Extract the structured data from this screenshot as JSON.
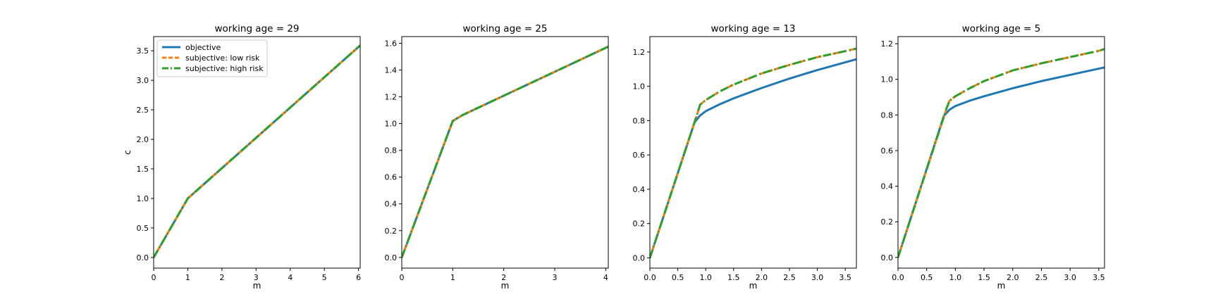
{
  "figure": {
    "background": "#ffffff",
    "series_styles": [
      {
        "color": "#1f77b4",
        "dash": "solid"
      },
      {
        "color": "#ff7f0e",
        "dash": "dashed"
      },
      {
        "color": "#2ca02c",
        "dash": "dashdot"
      }
    ]
  },
  "chart_data": [
    {
      "type": "line",
      "title": "working age = 29",
      "xlabel": "m",
      "ylabel": "c",
      "xlim": [
        0,
        6.05
      ],
      "ylim": [
        -0.18,
        3.74
      ],
      "xticks": [
        0,
        1,
        2,
        3,
        4,
        5,
        6
      ],
      "yticks": [
        0.0,
        0.5,
        1.0,
        1.5,
        2.0,
        2.5,
        3.0,
        3.5
      ],
      "ytick_labels": [
        "0.0",
        "0.5",
        "1.0",
        "1.5",
        "2.0",
        "2.5",
        "3.0",
        "3.5"
      ],
      "legend": {
        "position": "upper-left"
      },
      "series": [
        {
          "name": "objective",
          "x": [
            0,
            1.0,
            6.05
          ],
          "y": [
            0,
            1.0,
            3.59
          ]
        },
        {
          "name": "subjective: low risk",
          "x": [
            0,
            1.0,
            6.05
          ],
          "y": [
            0,
            1.0,
            3.59
          ]
        },
        {
          "name": "subjective: high risk",
          "x": [
            0,
            1.0,
            6.05
          ],
          "y": [
            0,
            1.0,
            3.59
          ]
        }
      ]
    },
    {
      "type": "line",
      "title": "working age = 25",
      "xlabel": "m",
      "ylabel": "",
      "xlim": [
        0,
        4.05
      ],
      "ylim": [
        -0.08,
        1.65
      ],
      "xticks": [
        0,
        1,
        2,
        3,
        4
      ],
      "yticks": [
        0.0,
        0.2,
        0.4,
        0.6,
        0.8,
        1.0,
        1.2,
        1.4,
        1.6
      ],
      "ytick_labels": [
        "0.0",
        "0.2",
        "0.4",
        "0.6",
        "0.8",
        "1.0",
        "1.2",
        "1.4",
        "1.6"
      ],
      "series": [
        {
          "name": "objective",
          "x": [
            0,
            1.0,
            1.2,
            4.05
          ],
          "y": [
            0,
            1.02,
            1.065,
            1.575
          ]
        },
        {
          "name": "subjective: low risk",
          "x": [
            0,
            1.0,
            1.2,
            4.05
          ],
          "y": [
            0,
            1.02,
            1.065,
            1.575
          ]
        },
        {
          "name": "subjective: high risk",
          "x": [
            0,
            1.0,
            1.2,
            4.05
          ],
          "y": [
            0,
            1.02,
            1.065,
            1.575
          ]
        }
      ]
    },
    {
      "type": "line",
      "title": "working age = 13",
      "xlabel": "m",
      "ylabel": "",
      "xlim": [
        0,
        3.7
      ],
      "ylim": [
        -0.06,
        1.29
      ],
      "xticks": [
        0.0,
        0.5,
        1.0,
        1.5,
        2.0,
        2.5,
        3.0,
        3.5
      ],
      "xtick_labels": [
        "0.0",
        "0.5",
        "1.0",
        "1.5",
        "2.0",
        "2.5",
        "3.0",
        "3.5"
      ],
      "yticks": [
        0.0,
        0.2,
        0.4,
        0.6,
        0.8,
        1.0,
        1.2
      ],
      "ytick_labels": [
        "0.0",
        "0.2",
        "0.4",
        "0.6",
        "0.8",
        "1.0",
        "1.2"
      ],
      "series": [
        {
          "name": "objective",
          "x": [
            0,
            0.8,
            0.9,
            1.0,
            1.25,
            1.5,
            2.0,
            2.5,
            3.0,
            3.5,
            3.7
          ],
          "y": [
            0,
            0.79,
            0.83,
            0.855,
            0.895,
            0.93,
            0.99,
            1.045,
            1.095,
            1.14,
            1.158
          ]
        },
        {
          "name": "subjective: low risk",
          "x": [
            0,
            0.85,
            0.9,
            1.0,
            1.25,
            1.5,
            2.0,
            2.5,
            3.0,
            3.5,
            3.7
          ],
          "y": [
            0,
            0.84,
            0.893,
            0.92,
            0.97,
            1.01,
            1.075,
            1.125,
            1.17,
            1.205,
            1.22
          ]
        },
        {
          "name": "subjective: high risk",
          "x": [
            0,
            0.85,
            0.9,
            1.0,
            1.25,
            1.5,
            2.0,
            2.5,
            3.0,
            3.5,
            3.7
          ],
          "y": [
            0,
            0.84,
            0.893,
            0.92,
            0.97,
            1.01,
            1.075,
            1.125,
            1.17,
            1.205,
            1.22
          ]
        }
      ]
    },
    {
      "type": "line",
      "title": "working age = 5",
      "xlabel": "m",
      "ylabel": "",
      "xlim": [
        0,
        3.6
      ],
      "ylim": [
        -0.06,
        1.24
      ],
      "xticks": [
        0.0,
        0.5,
        1.0,
        1.5,
        2.0,
        2.5,
        3.0,
        3.5
      ],
      "xtick_labels": [
        "0.0",
        "0.5",
        "1.0",
        "1.5",
        "2.0",
        "2.5",
        "3.0",
        "3.5"
      ],
      "yticks": [
        0.0,
        0.2,
        0.4,
        0.6,
        0.8,
        1.0,
        1.2
      ],
      "ytick_labels": [
        "0.0",
        "0.2",
        "0.4",
        "0.6",
        "0.8",
        "1.0",
        "1.2"
      ],
      "series": [
        {
          "name": "objective",
          "x": [
            0,
            0.8,
            0.9,
            1.0,
            1.25,
            1.5,
            2.0,
            2.5,
            3.0,
            3.5,
            3.6
          ],
          "y": [
            0,
            0.795,
            0.83,
            0.85,
            0.88,
            0.905,
            0.95,
            0.99,
            1.025,
            1.06,
            1.067
          ]
        },
        {
          "name": "subjective: low risk",
          "x": [
            0,
            0.85,
            0.9,
            1.0,
            1.25,
            1.5,
            2.0,
            2.5,
            3.0,
            3.5,
            3.6
          ],
          "y": [
            0,
            0.84,
            0.88,
            0.905,
            0.95,
            0.99,
            1.05,
            1.09,
            1.125,
            1.16,
            1.17
          ]
        },
        {
          "name": "subjective: high risk",
          "x": [
            0,
            0.85,
            0.9,
            1.0,
            1.25,
            1.5,
            2.0,
            2.5,
            3.0,
            3.5,
            3.6
          ],
          "y": [
            0,
            0.84,
            0.88,
            0.905,
            0.95,
            0.99,
            1.05,
            1.09,
            1.125,
            1.16,
            1.17
          ]
        }
      ]
    }
  ]
}
